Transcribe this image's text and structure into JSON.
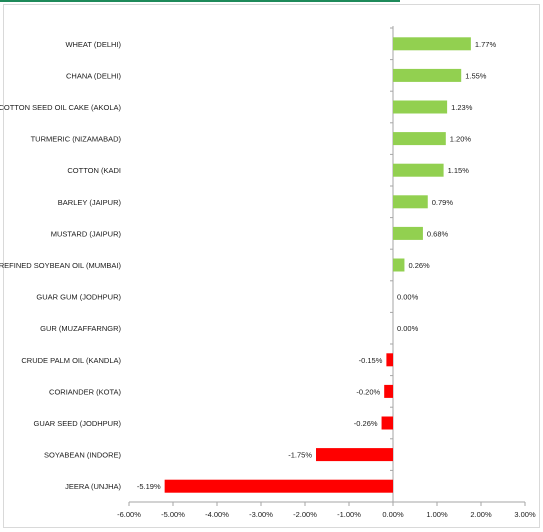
{
  "chart_data": {
    "type": "bar",
    "orientation": "horizontal",
    "categories": [
      "WHEAT (DELHI)",
      "CHANA (DELHI)",
      "COTTON SEED OIL CAKE (AKOLA)",
      "TURMERIC (NIZAMABAD)",
      "COTTON (KADI",
      "BARLEY (JAIPUR)",
      "MUSTARD (JAIPUR)",
      "REFINED SOYBEAN OIL (MUMBAI)",
      "GUAR GUM (JODHPUR)",
      "GUR (MUZAFFARNGR)",
      "CRUDE PALM OIL (KANDLA)",
      "CORIANDER (KOTA)",
      "GUAR SEED (JODHPUR)",
      "SOYABEAN (INDORE)",
      "JEERA (UNJHA)"
    ],
    "values": [
      1.77,
      1.55,
      1.23,
      1.2,
      1.15,
      0.79,
      0.68,
      0.26,
      0.0,
      0.0,
      -0.15,
      -0.2,
      -0.26,
      -1.75,
      -5.19
    ],
    "data_labels": [
      "1.77%",
      "1.55%",
      "1.23%",
      "1.20%",
      "1.15%",
      "0.79%",
      "0.68%",
      "0.26%",
      "0.00%",
      "0.00%",
      "-0.15%",
      "-0.20%",
      "-0.26%",
      "-1.75%",
      "-5.19%"
    ],
    "xlim": [
      -6,
      3
    ],
    "xticks": [
      -6,
      -5,
      -4,
      -3,
      -2,
      -1,
      0,
      1,
      2,
      3
    ],
    "xtick_labels": [
      "-6.00%",
      "-5.00%",
      "-4.00%",
      "-3.00%",
      "-2.00%",
      "-1.00%",
      "0.00%",
      "1.00%",
      "2.00%",
      "3.00%"
    ],
    "title": "",
    "xlabel": "",
    "ylabel": "",
    "grid": false,
    "legend": "none",
    "colors": {
      "positive": "#92d050",
      "negative": "#ff0000",
      "axis": "#a6a6a6",
      "accent_rule": "#1e8a5a"
    }
  }
}
